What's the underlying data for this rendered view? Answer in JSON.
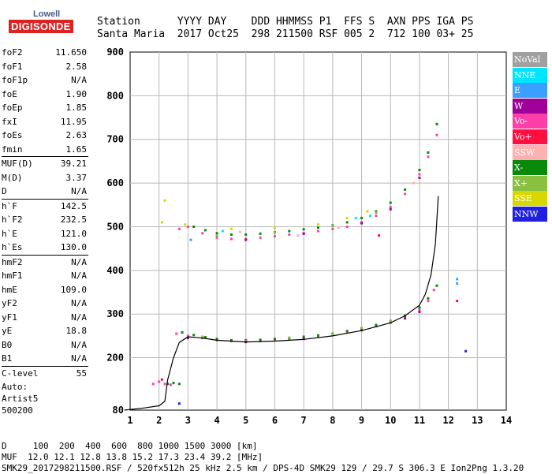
{
  "logo": {
    "line1": "Lowell",
    "line2": "DIGISONDE"
  },
  "header": {
    "line1": "Station      YYYY DAY    DDD HHMMSS P1  FFS S  AXN PPS IGA PS",
    "line2": "Santa Maria  2017 Oct25  298 211500 RSF 005 2  712 100 03+ 25"
  },
  "params": [
    {
      "name": "foF2",
      "value": "11.650"
    },
    {
      "name": "foF1",
      "value": "2.58"
    },
    {
      "name": "foF1p",
      "value": "N/A"
    },
    {
      "name": "foE",
      "value": "1.90"
    },
    {
      "name": "foEp",
      "value": "1.85"
    },
    {
      "name": "fxI",
      "value": "11.95"
    },
    {
      "name": "foEs",
      "value": "2.63"
    },
    {
      "name": "fmin",
      "value": "1.65"
    },
    {
      "name": "MUF(D)",
      "value": "39.21",
      "sep": true
    },
    {
      "name": "M(D)",
      "value": "3.37"
    },
    {
      "name": "D",
      "value": "N/A"
    },
    {
      "name": "h`F",
      "value": "142.5",
      "sep": true
    },
    {
      "name": "h`F2",
      "value": "232.5"
    },
    {
      "name": "h`E",
      "value": "121.0"
    },
    {
      "name": "h`Es",
      "value": "130.0"
    },
    {
      "name": "hmF2",
      "value": "N/A",
      "sep": true
    },
    {
      "name": "hmF1",
      "value": "N/A"
    },
    {
      "name": "hmE",
      "value": "109.0"
    },
    {
      "name": "yF2",
      "value": "N/A"
    },
    {
      "name": "yF1",
      "value": "N/A"
    },
    {
      "name": "yE",
      "value": "18.8"
    },
    {
      "name": "B0",
      "value": "N/A"
    },
    {
      "name": "B1",
      "value": "N/A"
    },
    {
      "name": "C-level",
      "value": "55",
      "sep": true
    }
  ],
  "auto": {
    "line1": "Auto:",
    "line2": "Artist5",
    "line3": "500200"
  },
  "bottom": {
    "line1": "D     100  200  400  600  800 1000 1500 3000 [km]",
    "line2": "MUF  12.0 12.1 12.8 13.8 15.2 17.3 23.4 39.2 [MHz]",
    "line3": "SMK29_2017298211500.RSF / 520fx512h 25 kHz 2.5 km / DPS-4D SMK29 129 / 29.7 S 306.3 E Ion2Png 1.3.20"
  },
  "legend": [
    {
      "label": "NoVal",
      "color": "#a0a0a0"
    },
    {
      "label": "NNE",
      "color": "#00e5ff"
    },
    {
      "label": "E",
      "color": "#3aa0ff"
    },
    {
      "label": "W",
      "color": "#a0009a"
    },
    {
      "label": "Vo-",
      "color": "#ff3fa8"
    },
    {
      "label": "Vo+",
      "color": "#ff1040"
    },
    {
      "label": "SSW",
      "color": "#ffb0b0"
    },
    {
      "label": "X-",
      "color": "#0a8a0a"
    },
    {
      "label": "X+",
      "color": "#8ac040"
    },
    {
      "label": "SSE",
      "color": "#d8d800"
    },
    {
      "label": "NNW",
      "color": "#2020e0"
    }
  ],
  "chart_data": {
    "type": "scatter",
    "xlim": [
      1,
      14
    ],
    "ylim": [
      80,
      900
    ],
    "x_ticks": [
      1,
      2,
      3,
      4,
      5,
      6,
      7,
      8,
      9,
      10,
      11,
      12,
      13,
      14
    ],
    "y_ticks": [
      80,
      200,
      300,
      400,
      500,
      600,
      700,
      800,
      900
    ],
    "grid": true,
    "legend_position": "right",
    "series": [
      {
        "name": "Vo-",
        "color": "#ff3fa8",
        "points": [
          [
            2.6,
            255
          ],
          [
            3,
            250
          ],
          [
            3.5,
            245
          ],
          [
            4,
            240
          ],
          [
            4.5,
            238
          ],
          [
            5,
            237
          ],
          [
            5.5,
            238
          ],
          [
            6,
            240
          ],
          [
            6.5,
            242
          ],
          [
            7,
            245
          ],
          [
            7.5,
            248
          ],
          [
            8,
            252
          ],
          [
            8.5,
            258
          ],
          [
            9,
            264
          ],
          [
            9.5,
            272
          ],
          [
            10,
            280
          ],
          [
            10.5,
            292
          ],
          [
            11,
            310
          ],
          [
            11.3,
            330
          ],
          [
            11.5,
            355
          ],
          [
            2.7,
            495
          ],
          [
            3,
            500
          ],
          [
            3.5,
            485
          ],
          [
            4,
            475
          ],
          [
            4.5,
            472
          ],
          [
            5,
            472
          ],
          [
            5.5,
            475
          ],
          [
            6,
            478
          ],
          [
            6.5,
            482
          ],
          [
            7,
            485
          ],
          [
            7.5,
            490
          ],
          [
            8,
            495
          ],
          [
            8.5,
            500
          ],
          [
            9,
            510
          ],
          [
            9.5,
            525
          ],
          [
            10,
            545
          ],
          [
            10.5,
            575
          ],
          [
            11,
            620
          ],
          [
            11.3,
            660
          ],
          [
            11.6,
            710
          ],
          [
            1.8,
            140
          ],
          [
            2.0,
            145
          ],
          [
            2.2,
            140
          ],
          [
            2.4,
            138
          ]
        ]
      },
      {
        "name": "X-",
        "color": "#0a8a0a",
        "points": [
          [
            2.8,
            258
          ],
          [
            3.2,
            252
          ],
          [
            3.6,
            247
          ],
          [
            4,
            243
          ],
          [
            4.5,
            240
          ],
          [
            5,
            240
          ],
          [
            5.5,
            241
          ],
          [
            6,
            243
          ],
          [
            6.5,
            245
          ],
          [
            7,
            248
          ],
          [
            7.5,
            251
          ],
          [
            8,
            255
          ],
          [
            8.5,
            261
          ],
          [
            9,
            267
          ],
          [
            9.5,
            275
          ],
          [
            10,
            284
          ],
          [
            10.5,
            296
          ],
          [
            11,
            315
          ],
          [
            11.3,
            336
          ],
          [
            11.6,
            365
          ],
          [
            3.2,
            500
          ],
          [
            3.6,
            492
          ],
          [
            4,
            485
          ],
          [
            4.5,
            482
          ],
          [
            5,
            482
          ],
          [
            5.5,
            484
          ],
          [
            6,
            487
          ],
          [
            6.5,
            490
          ],
          [
            7,
            494
          ],
          [
            7.5,
            498
          ],
          [
            8,
            503
          ],
          [
            8.5,
            510
          ],
          [
            9,
            520
          ],
          [
            9.5,
            535
          ],
          [
            10,
            555
          ],
          [
            10.5,
            585
          ],
          [
            11,
            630
          ],
          [
            11.3,
            670
          ],
          [
            11.6,
            735
          ],
          [
            2.3,
            140
          ],
          [
            2.5,
            142
          ],
          [
            2.7,
            140
          ]
        ]
      },
      {
        "name": "X+",
        "color": "#8ac040",
        "points": [
          [
            3.5,
            248
          ],
          [
            5,
            238
          ],
          [
            6.5,
            246
          ],
          [
            8,
            254
          ],
          [
            9,
            268
          ],
          [
            10,
            285
          ],
          [
            4,
            480
          ],
          [
            6,
            486
          ],
          [
            8,
            502
          ],
          [
            9.5,
            532
          ]
        ]
      },
      {
        "name": "SSE",
        "color": "#d8d800",
        "points": [
          [
            2.9,
            505
          ],
          [
            4.5,
            495
          ],
          [
            6,
            498
          ],
          [
            7.5,
            505
          ],
          [
            8.5,
            520
          ],
          [
            9.2,
            535
          ],
          [
            2.2,
            560
          ],
          [
            2.1,
            510
          ]
        ]
      },
      {
        "name": "W",
        "color": "#a0009a",
        "points": [
          [
            3,
            245
          ],
          [
            5,
            236
          ],
          [
            7,
            243
          ],
          [
            9,
            263
          ],
          [
            10.5,
            290
          ],
          [
            11,
            305
          ],
          [
            5,
            470
          ],
          [
            7,
            484
          ],
          [
            9,
            508
          ],
          [
            10,
            540
          ],
          [
            11,
            612
          ]
        ]
      },
      {
        "name": "NNE",
        "color": "#00e5ff",
        "points": [
          [
            9.3,
            525
          ],
          [
            8.8,
            520
          ],
          [
            4.2,
            490
          ]
        ]
      },
      {
        "name": "E",
        "color": "#3aa0ff",
        "points": [
          [
            12.3,
            380
          ],
          [
            12.3,
            370
          ],
          [
            3.1,
            470
          ]
        ]
      },
      {
        "name": "NNW",
        "color": "#2020e0",
        "points": [
          [
            12.6,
            215
          ],
          [
            2.7,
            95
          ]
        ]
      },
      {
        "name": "SSW",
        "color": "#ffb0b0",
        "points": [
          [
            4.8,
            488
          ],
          [
            6.8,
            480
          ],
          [
            8.2,
            498
          ],
          [
            10.8,
            600
          ]
        ]
      },
      {
        "name": "Vo+",
        "color": "#ff1040",
        "points": [
          [
            12.3,
            330
          ],
          [
            2.1,
            150
          ],
          [
            9.6,
            480
          ]
        ]
      }
    ],
    "profile_line": [
      [
        0.8,
        80
      ],
      [
        1.5,
        85
      ],
      [
        2.0,
        90
      ],
      [
        2.2,
        100
      ],
      [
        2.3,
        150
      ],
      [
        2.5,
        200
      ],
      [
        2.7,
        235
      ],
      [
        3.0,
        248
      ],
      [
        3.5,
        245
      ],
      [
        4,
        240
      ],
      [
        5,
        236
      ],
      [
        6,
        238
      ],
      [
        7,
        242
      ],
      [
        8,
        250
      ],
      [
        9,
        262
      ],
      [
        10,
        280
      ],
      [
        10.5,
        296
      ],
      [
        11,
        320
      ],
      [
        11.2,
        345
      ],
      [
        11.4,
        390
      ],
      [
        11.55,
        460
      ],
      [
        11.65,
        570
      ]
    ]
  }
}
